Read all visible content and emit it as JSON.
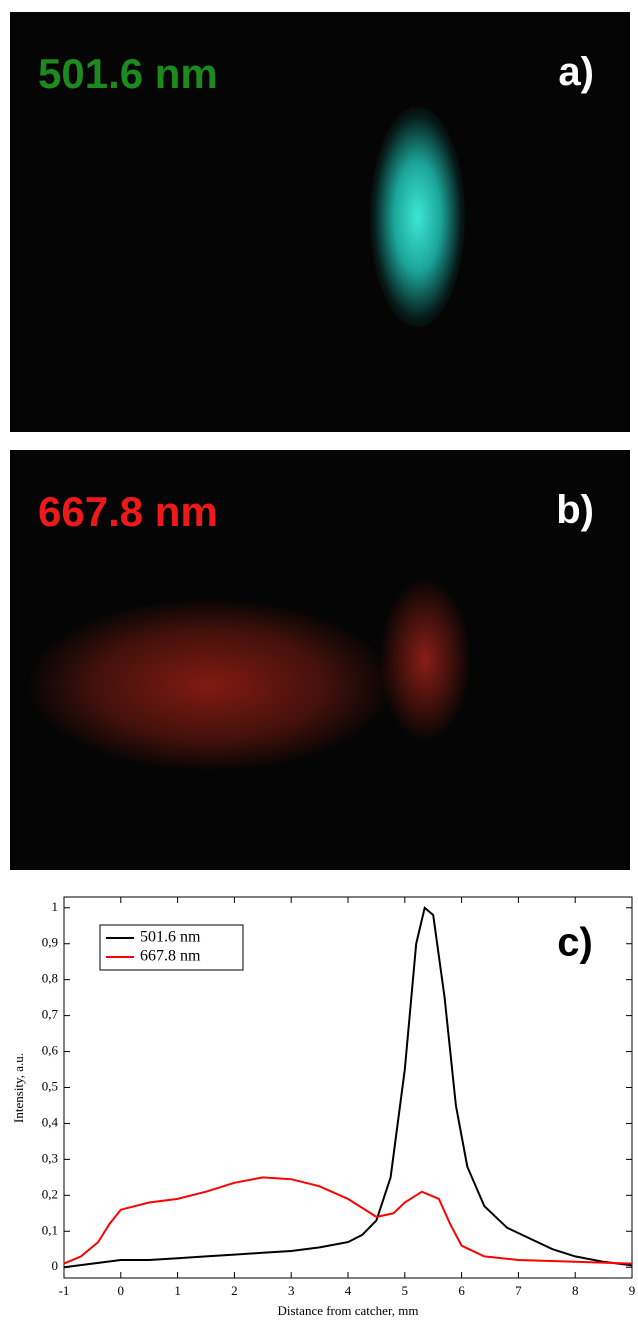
{
  "panels": [
    {
      "label": "501.6 nm",
      "tag": "a)"
    },
    {
      "label": "667.8 nm",
      "tag": "b)"
    }
  ],
  "chart_data": {
    "type": "line",
    "annotation": "c)",
    "x_label": "Distance from catcher, mm",
    "y_label": "Intensity, a.u.",
    "xlim": [
      -1,
      9
    ],
    "xticks": [
      -1,
      0,
      1,
      2,
      3,
      4,
      5,
      6,
      7,
      8,
      9
    ],
    "ylim": [
      -0.03,
      1.03
    ],
    "yticks": [
      0,
      {
        "value": 0.1,
        "label": "0,1"
      },
      {
        "value": 0.2,
        "label": "0,2"
      },
      {
        "value": 0.3,
        "label": "0,3"
      },
      {
        "value": 0.4,
        "label": "0,4"
      },
      {
        "value": 0.5,
        "label": "0,5"
      },
      {
        "value": 0.6,
        "label": "0,6"
      },
      {
        "value": 0.7,
        "label": "0,7"
      },
      {
        "value": 0.8,
        "label": "0,8"
      },
      {
        "value": 0.9,
        "label": "0,9"
      },
      1
    ],
    "legend": "upper left",
    "series": [
      {
        "name": "501.6 nm",
        "color": "#000000",
        "x": [
          -1,
          -0.5,
          0,
          0.5,
          1,
          1.5,
          2,
          2.5,
          3,
          3.5,
          4,
          4.25,
          4.5,
          4.75,
          5,
          5.2,
          5.35,
          5.5,
          5.7,
          5.9,
          6.1,
          6.4,
          6.8,
          7.2,
          7.6,
          8,
          8.5,
          9
        ],
        "values": [
          0,
          0.01,
          0.02,
          0.02,
          0.025,
          0.03,
          0.035,
          0.04,
          0.045,
          0.055,
          0.07,
          0.09,
          0.13,
          0.25,
          0.55,
          0.9,
          1.0,
          0.98,
          0.75,
          0.45,
          0.28,
          0.17,
          0.11,
          0.08,
          0.05,
          0.03,
          0.015,
          0.005
        ]
      },
      {
        "name": "667.8 nm",
        "color": "#ff0000",
        "x": [
          -1,
          -0.7,
          -0.4,
          -0.2,
          0,
          0.5,
          1,
          1.5,
          2,
          2.5,
          3,
          3.5,
          4,
          4.5,
          4.8,
          5,
          5.3,
          5.6,
          5.8,
          6,
          6.4,
          7,
          8,
          9
        ],
        "values": [
          0.01,
          0.03,
          0.07,
          0.12,
          0.16,
          0.18,
          0.19,
          0.21,
          0.235,
          0.25,
          0.245,
          0.225,
          0.19,
          0.14,
          0.15,
          0.18,
          0.21,
          0.19,
          0.12,
          0.06,
          0.03,
          0.02,
          0.015,
          0.01
        ]
      }
    ]
  }
}
